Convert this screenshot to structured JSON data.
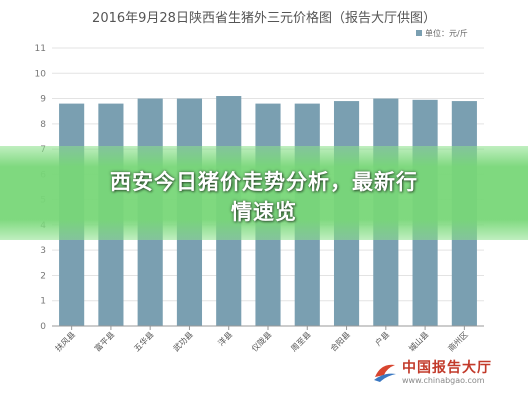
{
  "chart_data": {
    "type": "bar",
    "title": "2016年9月28日陕西省生猪外三元价格图（报告大厅供图）",
    "legend": {
      "label": "单位：元/斤",
      "position": "top-right"
    },
    "categories": [
      "扶风县",
      "富平县",
      "五华县",
      "武功县",
      "洋县",
      "仪陇县",
      "周至县",
      "合阳县",
      "户县",
      "城山县",
      "商州区"
    ],
    "values": [
      8.8,
      8.8,
      9.0,
      9.0,
      9.1,
      8.8,
      8.8,
      8.9,
      9.0,
      8.95,
      8.9
    ],
    "ylim": [
      0,
      11
    ],
    "yticks": [
      0,
      1,
      2,
      3,
      4,
      5,
      6,
      7,
      8,
      9,
      10,
      11
    ],
    "grid": true,
    "bar_color": "#7a9fb1"
  },
  "banner": {
    "line1": "西安今日猪价走势分析，最新行",
    "line2": "情速览"
  },
  "watermark": {
    "name": "中国报告大厅",
    "url": "www.chinabgao.com"
  }
}
